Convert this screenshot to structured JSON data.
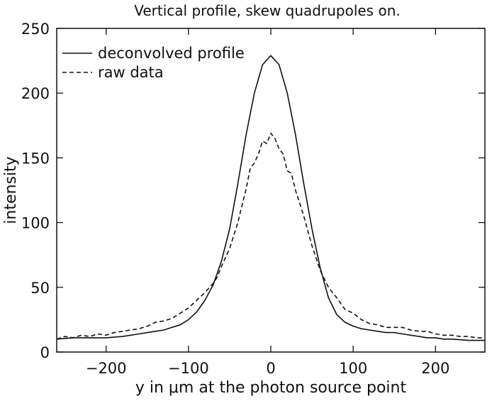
{
  "chart_data": {
    "type": "line",
    "title": "Vertical profile, skew quadrupoles on.",
    "xlabel": "y in μm at the photon source point",
    "ylabel": "intensity",
    "xlim": [
      -260,
      260
    ],
    "ylim": [
      0,
      250
    ],
    "xticks": [
      -200,
      -100,
      0,
      100,
      200
    ],
    "yticks": [
      0,
      50,
      100,
      150,
      200,
      250
    ],
    "legend_position": "top-left",
    "grid": false,
    "series": [
      {
        "name": "deconvolved profile",
        "style": "solid",
        "x": [
          -260,
          -240,
          -220,
          -200,
          -180,
          -160,
          -150,
          -140,
          -130,
          -120,
          -110,
          -100,
          -90,
          -80,
          -70,
          -60,
          -50,
          -40,
          -30,
          -20,
          -10,
          0,
          10,
          20,
          30,
          40,
          50,
          60,
          70,
          80,
          90,
          100,
          110,
          120,
          130,
          140,
          150,
          160,
          170,
          180,
          190,
          200,
          210,
          220,
          240,
          260
        ],
        "y": [
          10,
          11,
          11,
          11,
          12,
          14,
          15,
          16,
          17,
          19,
          21,
          25,
          31,
          40,
          52,
          70,
          95,
          130,
          168,
          200,
          222,
          229,
          222,
          200,
          168,
          130,
          95,
          65,
          42,
          29,
          23,
          20,
          18,
          17,
          16,
          15,
          15,
          14,
          13,
          12,
          11,
          11,
          10,
          10,
          9,
          9
        ]
      },
      {
        "name": "raw data",
        "style": "dashed",
        "x": [
          -260,
          -250,
          -240,
          -230,
          -220,
          -210,
          -200,
          -190,
          -180,
          -170,
          -160,
          -150,
          -140,
          -130,
          -120,
          -110,
          -100,
          -90,
          -80,
          -70,
          -65,
          -60,
          -50,
          -40,
          -35,
          -30,
          -25,
          -20,
          -15,
          -10,
          -5,
          0,
          5,
          10,
          15,
          20,
          25,
          30,
          35,
          40,
          50,
          60,
          70,
          80,
          90,
          100,
          110,
          120,
          130,
          140,
          150,
          160,
          170,
          180,
          190,
          200,
          210,
          220,
          230,
          240,
          250,
          260
        ],
        "y": [
          10,
          12,
          11,
          13,
          12,
          14,
          13,
          15,
          16,
          17,
          18,
          20,
          23,
          24,
          26,
          30,
          34,
          40,
          46,
          53,
          58,
          66,
          80,
          100,
          113,
          126,
          142,
          146,
          153,
          163,
          161,
          169,
          165,
          157,
          153,
          140,
          138,
          125,
          115,
          105,
          82,
          63,
          50,
          42,
          33,
          30,
          25,
          22,
          21,
          19,
          19,
          19,
          17,
          16,
          16,
          14,
          13,
          13,
          12,
          12,
          11,
          11
        ]
      }
    ]
  }
}
